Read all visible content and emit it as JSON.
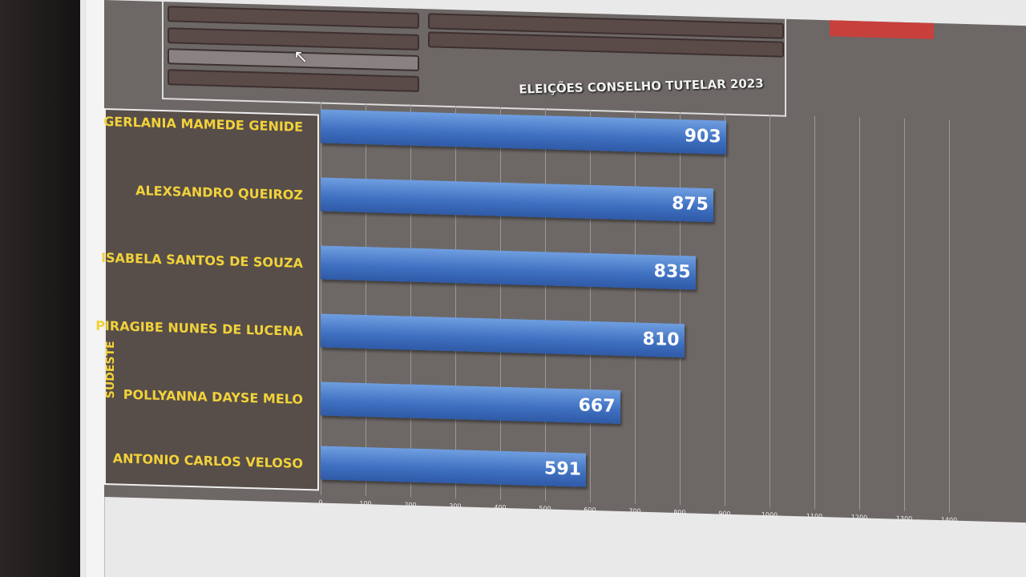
{
  "chart_data": {
    "type": "bar",
    "orientation": "horizontal",
    "title": "ELEIÇÕES CONSELHO TUTELAR 2023",
    "group_label": "SUDESTE",
    "categories": [
      "GERLANIA MAMEDE GENIDE",
      "ALEXSANDRO QUEIROZ",
      "ISABELA SANTOS DE SOUZA",
      "PIRAGIBE NUNES DE LUCENA",
      "POLLYANNA DAYSE MELO",
      "ANTONIO CARLOS VELOSO"
    ],
    "values": [
      903,
      875,
      835,
      810,
      667,
      591
    ],
    "xlim": [
      0,
      1400
    ],
    "xticks": [
      0,
      100,
      200,
      300,
      400,
      500,
      600,
      700,
      800,
      900,
      1000,
      1100,
      1200,
      1300,
      1400
    ],
    "grid": true,
    "bar_color": "#3e6fc0",
    "label_color": "#f1d23a"
  }
}
